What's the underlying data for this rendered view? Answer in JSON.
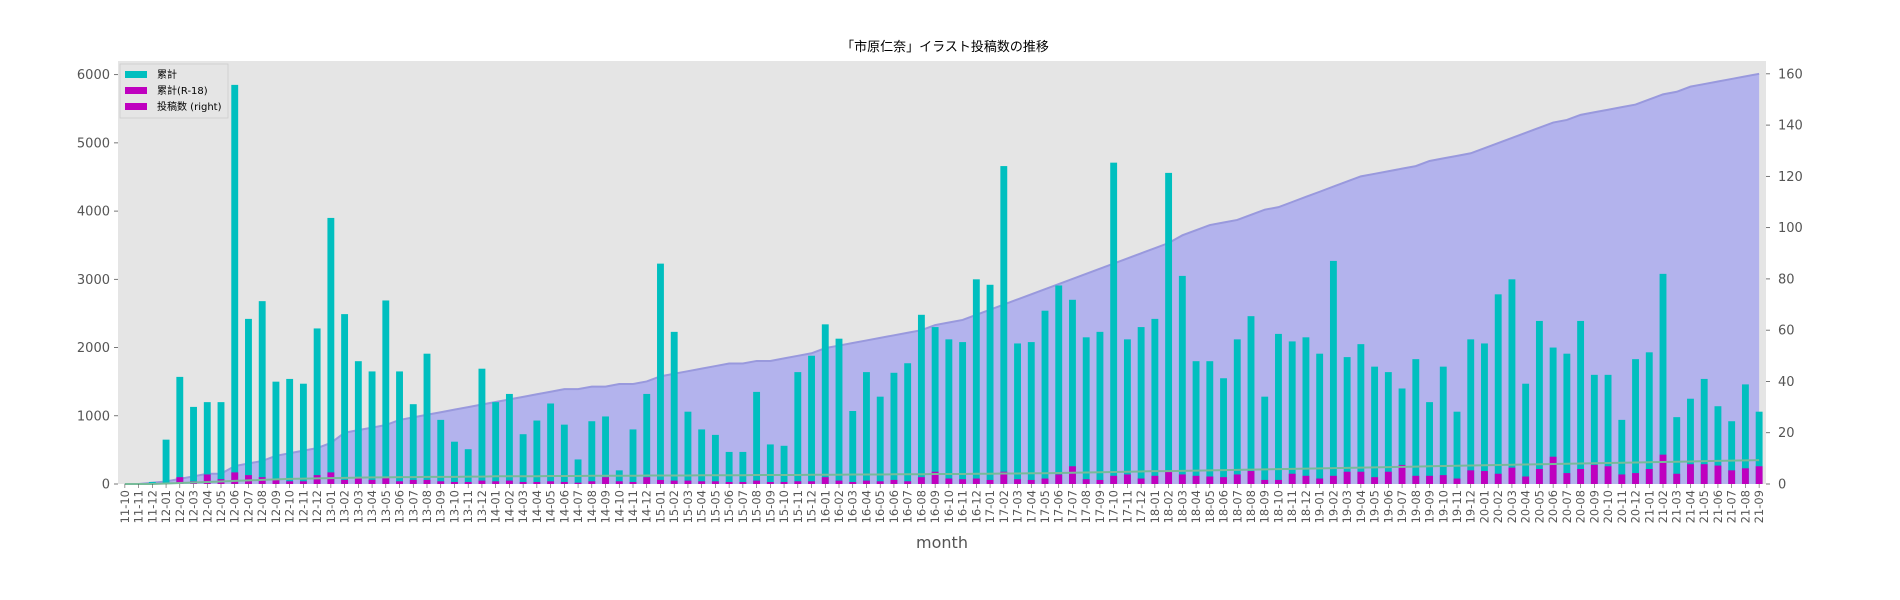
{
  "chart_data": {
    "type": "bar",
    "title": "「市原仁奈」イラスト投稿数の推移",
    "xlabel": "month",
    "ylim_left": [
      0,
      6200
    ],
    "ylim_right": [
      0,
      165
    ],
    "yticks_left": [
      "0",
      "1000",
      "2000",
      "3000",
      "4000",
      "5000",
      "6000"
    ],
    "yticks_right": [
      "0",
      "20",
      "40",
      "60",
      "80",
      "100",
      "120",
      "140",
      "160"
    ],
    "grid": false,
    "legend_position": "top-left",
    "colors": {
      "cumulative": "#00bfbf",
      "r18": "#bf00bf",
      "area": "#aaaaee",
      "area_line": "#9999dd",
      "r18_line": "#77bb99",
      "plot_bg": "#e5e5e5"
    },
    "legend": [
      "累計",
      "累計(R-18)",
      "投稿数 (right)"
    ],
    "categories": [
      "11-10",
      "11-11",
      "11-12",
      "12-01",
      "12-02",
      "12-03",
      "12-04",
      "12-05",
      "12-06",
      "12-07",
      "12-08",
      "12-09",
      "12-10",
      "12-11",
      "12-12",
      "13-01",
      "13-02",
      "13-03",
      "13-04",
      "13-05",
      "13-06",
      "13-07",
      "13-08",
      "13-09",
      "13-10",
      "13-11",
      "13-12",
      "14-01",
      "14-02",
      "14-03",
      "14-04",
      "14-05",
      "14-06",
      "14-07",
      "14-08",
      "14-09",
      "14-10",
      "14-11",
      "14-12",
      "15-01",
      "15-02",
      "15-03",
      "15-04",
      "15-05",
      "15-06",
      "15-07",
      "15-08",
      "15-09",
      "15-10",
      "15-11",
      "15-12",
      "16-01",
      "16-02",
      "16-03",
      "16-04",
      "16-05",
      "16-06",
      "16-07",
      "16-08",
      "16-09",
      "16-10",
      "16-11",
      "16-12",
      "17-01",
      "17-02",
      "17-03",
      "17-04",
      "17-05",
      "17-06",
      "17-07",
      "17-08",
      "17-09",
      "17-10",
      "17-11",
      "17-12",
      "18-01",
      "18-02",
      "18-03",
      "18-04",
      "18-05",
      "18-06",
      "18-07",
      "18-08",
      "18-09",
      "18-10",
      "18-11",
      "18-12",
      "19-01",
      "19-02",
      "19-03",
      "19-04",
      "19-05",
      "19-06",
      "19-07",
      "19-08",
      "19-09",
      "19-10",
      "19-11",
      "19-12",
      "20-01",
      "20-02",
      "20-03",
      "20-04",
      "20-05",
      "20-06",
      "20-07",
      "20-08",
      "20-09",
      "20-10",
      "20-11",
      "20-12",
      "21-01",
      "21-02",
      "21-03",
      "21-04",
      "21-05",
      "21-06",
      "21-07",
      "21-08",
      "21-09"
    ],
    "xtick_labels": [
      "11-10",
      "11-11",
      "11-12",
      "12-01",
      "12-02",
      "12-03",
      "12-04",
      "12-05",
      "12-06",
      "12-07",
      "12-08",
      "12-09",
      "12-10",
      "12-11",
      "12-12",
      "13-01",
      "13-02",
      "13-03",
      "13-04",
      "13-05",
      "13-06",
      "13-07",
      "13-08",
      "13-09",
      "13-10",
      "13-11",
      "13-12",
      "14-01",
      "14-02",
      "14-03",
      "14-04",
      "14-05",
      "14-06",
      "14-07",
      "14-08",
      "14-09",
      "14-10",
      "14-11",
      "14-12",
      "15-01",
      "15-02",
      "15-03",
      "15-04",
      "15-05",
      "15-06",
      "15-07",
      "15-08",
      "15-09",
      "15-10",
      "15-11",
      "15-12",
      "16-01",
      "16-02",
      "16-03",
      "16-04",
      "16-05",
      "16-06",
      "16-07",
      "16-08",
      "16-09",
      "16-10",
      "16-11",
      "16-12",
      "17-01",
      "17-02",
      "17-03",
      "17-04",
      "17-05",
      "17-06",
      "17-07",
      "17-08",
      "17-09",
      "17-10",
      "17-11",
      "17-12",
      "18-01",
      "18-02",
      "18-03",
      "18-04",
      "18-05",
      "18-06",
      "18-07",
      "18-08",
      "18-09",
      "18-10",
      "18-11",
      "18-12",
      "19-01",
      "19-02",
      "19-03",
      "19-04",
      "19-05",
      "19-06",
      "19-07",
      "19-08",
      "19-09",
      "19-10",
      "19-11",
      "19-12",
      "20-01",
      "20-02",
      "20-03",
      "20-04",
      "20-05",
      "20-06",
      "20-07",
      "20-08",
      "20-09",
      "20-10",
      "20-11",
      "20-12",
      "21-01",
      "21-02",
      "21-03",
      "21-04",
      "21-05",
      "21-06",
      "21-07",
      "21-08",
      "21-09"
    ],
    "series": [
      {
        "name": "累計",
        "values": [
          0,
          0,
          30,
          650,
          1570,
          1130,
          1200,
          1200,
          5850,
          2420,
          2680,
          1500,
          1540,
          1470,
          2280,
          3900,
          2490,
          1800,
          1650,
          2690,
          1650,
          1170,
          1910,
          940,
          620,
          510,
          1690,
          1200,
          1320,
          730,
          930,
          1180,
          870,
          360,
          920,
          990,
          200,
          800,
          1320,
          3230,
          2230,
          1060,
          800,
          720,
          470,
          470,
          1350,
          580,
          560,
          1640,
          1880,
          2340,
          2130,
          1070,
          1640,
          1280,
          1630,
          1770,
          2480,
          2300,
          2120,
          2080,
          3000,
          2920,
          4660,
          2060,
          2080,
          2540,
          2910,
          2700,
          2150,
          2230,
          4710,
          2120,
          2300,
          2420,
          4560,
          3050,
          1800,
          1800,
          1550,
          2120,
          2460,
          1280,
          2200,
          2090,
          2150,
          1910,
          3270,
          1860,
          2050,
          1720,
          1640,
          1400,
          1830,
          1200,
          1720,
          1060,
          2120,
          2060,
          2780,
          3000,
          1470,
          2390,
          2000,
          1910,
          2390,
          1600,
          1600,
          940,
          1830,
          1930,
          3080,
          980,
          1250,
          1540,
          1140,
          920,
          1460,
          1060
        ]
      },
      {
        "name": "累計(R-18)",
        "values": [
          0,
          0,
          0,
          0,
          100,
          40,
          140,
          70,
          170,
          130,
          100,
          60,
          40,
          40,
          130,
          170,
          60,
          100,
          60,
          100,
          40,
          60,
          60,
          40,
          30,
          30,
          50,
          40,
          50,
          30,
          30,
          40,
          30,
          20,
          40,
          100,
          40,
          30,
          100,
          60,
          50,
          50,
          40,
          40,
          30,
          30,
          50,
          30,
          30,
          40,
          40,
          100,
          50,
          30,
          50,
          40,
          60,
          40,
          100,
          180,
          80,
          70,
          80,
          60,
          180,
          70,
          60,
          80,
          140,
          260,
          70,
          60,
          120,
          140,
          80,
          120,
          200,
          140,
          120,
          110,
          100,
          140,
          190,
          60,
          60,
          150,
          120,
          80,
          120,
          180,
          180,
          100,
          180,
          280,
          120,
          120,
          130,
          80,
          200,
          190,
          150,
          240,
          110,
          220,
          400,
          160,
          220,
          280,
          260,
          140,
          160,
          220,
          430,
          150,
          290,
          290,
          270,
          200,
          230,
          260
        ]
      },
      {
        "name": "投稿数 (right)",
        "values": [
          0,
          0,
          0.5,
          1,
          2,
          3,
          4,
          4,
          7,
          8,
          9,
          11,
          12,
          13,
          14,
          16,
          20,
          21,
          22,
          23,
          25,
          26,
          27,
          28,
          29,
          30,
          31,
          32,
          33,
          34,
          35,
          36,
          37,
          37,
          38,
          38,
          39,
          39,
          40,
          42,
          43,
          44,
          45,
          46,
          47,
          47,
          48,
          48,
          49,
          50,
          51,
          53,
          54,
          55,
          56,
          57,
          58,
          59,
          60,
          62,
          63,
          64,
          66,
          68,
          70,
          72,
          74,
          76,
          78,
          80,
          82,
          84,
          86,
          88,
          90,
          92,
          94,
          97,
          99,
          101,
          102,
          103,
          105,
          107,
          108,
          110,
          112,
          114,
          116,
          118,
          120,
          121,
          122,
          123,
          124,
          126,
          127,
          128,
          129,
          131,
          133,
          135,
          137,
          139,
          141,
          142,
          144,
          145,
          146,
          147,
          148,
          150,
          152,
          153,
          155,
          156,
          157,
          158,
          159,
          160
        ]
      },
      {
        "name": "R-18 cumulative line",
        "values": [
          0,
          0,
          0,
          0.2,
          0.4,
          0.6,
          0.8,
          1,
          1.2,
          1.4,
          1.6,
          1.8,
          2,
          2.1,
          2.2,
          2.3,
          2.4,
          2.5,
          2.6,
          2.6,
          2.7,
          2.7,
          2.8,
          2.8,
          2.8,
          2.9,
          2.9,
          3,
          3,
          3,
          3,
          3.1,
          3.1,
          3.1,
          3.2,
          3.2,
          3.2,
          3.2,
          3.3,
          3.3,
          3.3,
          3.3,
          3.4,
          3.4,
          3.4,
          3.4,
          3.5,
          3.5,
          3.5,
          3.5,
          3.6,
          3.6,
          3.6,
          3.7,
          3.7,
          3.7,
          3.8,
          3.8,
          3.8,
          3.9,
          3.9,
          3.9,
          4,
          4,
          4.1,
          4.1,
          4.2,
          4.2,
          4.3,
          4.4,
          4.5,
          4.6,
          4.7,
          4.8,
          4.9,
          5,
          5,
          5.1,
          5.2,
          5.3,
          5.4,
          5.5,
          5.6,
          5.7,
          5.8,
          5.9,
          6,
          6.1,
          6.2,
          6.3,
          6.4,
          6.5,
          6.6,
          6.7,
          6.8,
          6.9,
          7,
          7.1,
          7.2,
          7.3,
          7.4,
          7.5,
          7.6,
          7.7,
          7.8,
          7.9,
          8,
          8.1,
          8.2,
          8.3,
          8.4,
          8.5,
          8.6,
          8.7,
          8.8,
          8.9,
          9,
          9.1,
          9.2,
          9.3
        ]
      }
    ]
  }
}
